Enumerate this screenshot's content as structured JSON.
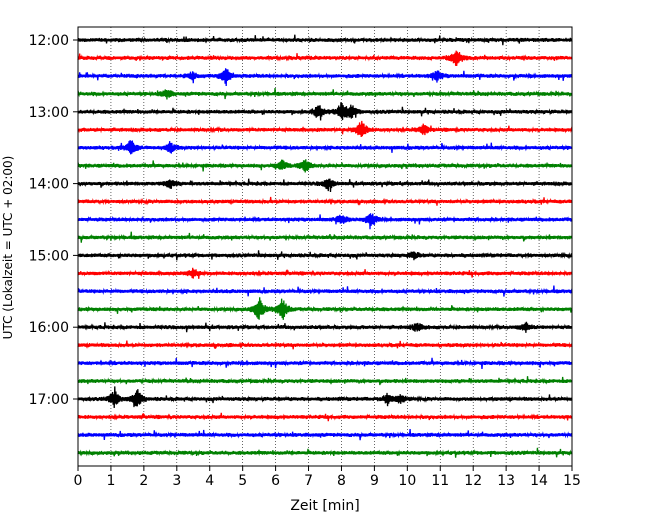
{
  "chart_data": {
    "type": "line",
    "title": "",
    "xlabel": "Zeit  [min]",
    "ylabel": "UTC (Lokalzeit = UTC + 02:00)",
    "xlim": [
      0,
      15
    ],
    "x_ticks": [
      "0",
      "1",
      "2",
      "3",
      "4",
      "5",
      "6",
      "7",
      "8",
      "9",
      "10",
      "11",
      "12",
      "13",
      "14",
      "15"
    ],
    "y_tick_labels": [
      "12:00",
      "13:00",
      "14:00",
      "15:00",
      "16:00",
      "17:00"
    ],
    "y_tick_rows": [
      0,
      4,
      8,
      12,
      16,
      20
    ],
    "rows_per_hour": 4,
    "minutes_per_row": 15,
    "num_rows": 24,
    "grid": "vertical-dotted",
    "colors": [
      "#000000",
      "#ff0000",
      "#0000ff",
      "#008000"
    ],
    "events": [
      {
        "row": 1,
        "minute": 11.5,
        "amp": 1.0
      },
      {
        "row": 2,
        "minute": 4.5,
        "amp": 1.0
      },
      {
        "row": 2,
        "minute": 3.5,
        "amp": 0.4
      },
      {
        "row": 2,
        "minute": 10.9,
        "amp": 0.6
      },
      {
        "row": 3,
        "minute": 2.7,
        "amp": 0.5
      },
      {
        "row": 4,
        "minute": 7.3,
        "amp": 0.8
      },
      {
        "row": 4,
        "minute": 8.0,
        "amp": 1.0
      },
      {
        "row": 4,
        "minute": 8.3,
        "amp": 0.8
      },
      {
        "row": 5,
        "minute": 8.6,
        "amp": 1.1
      },
      {
        "row": 5,
        "minute": 10.5,
        "amp": 0.6
      },
      {
        "row": 6,
        "minute": 1.6,
        "amp": 0.9
      },
      {
        "row": 6,
        "minute": 2.8,
        "amp": 0.6
      },
      {
        "row": 7,
        "minute": 6.2,
        "amp": 0.6
      },
      {
        "row": 7,
        "minute": 6.9,
        "amp": 0.7
      },
      {
        "row": 8,
        "minute": 2.8,
        "amp": 0.5
      },
      {
        "row": 8,
        "minute": 7.6,
        "amp": 0.7
      },
      {
        "row": 10,
        "minute": 8.9,
        "amp": 0.9
      },
      {
        "row": 10,
        "minute": 8.0,
        "amp": 0.5
      },
      {
        "row": 12,
        "minute": 10.2,
        "amp": 0.4
      },
      {
        "row": 13,
        "minute": 3.5,
        "amp": 0.5
      },
      {
        "row": 15,
        "minute": 5.5,
        "amp": 1.3
      },
      {
        "row": 15,
        "minute": 6.2,
        "amp": 1.3
      },
      {
        "row": 16,
        "minute": 10.3,
        "amp": 0.5
      },
      {
        "row": 16,
        "minute": 13.6,
        "amp": 0.5
      },
      {
        "row": 20,
        "minute": 1.1,
        "amp": 1.0
      },
      {
        "row": 20,
        "minute": 1.8,
        "amp": 1.1
      },
      {
        "row": 20,
        "minute": 9.4,
        "amp": 0.6
      },
      {
        "row": 20,
        "minute": 9.8,
        "amp": 0.5
      }
    ]
  }
}
